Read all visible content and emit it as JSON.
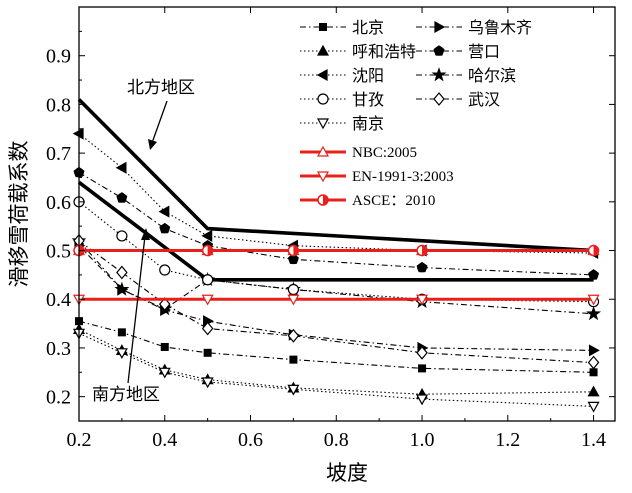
{
  "chart_data": {
    "type": "line",
    "title": "",
    "xlabel": "坡度",
    "ylabel": "滑移雪荷载系数",
    "xlim": [
      0.2,
      1.45
    ],
    "ylim": [
      0.15,
      1.0
    ],
    "xticks": [
      "0.2",
      "0.4",
      "0.6",
      "0.8",
      "1.0",
      "1.2",
      "1.4"
    ],
    "yticks": [
      "0.2",
      "0.3",
      "0.4",
      "0.5",
      "0.6",
      "0.7",
      "0.8",
      "0.9"
    ],
    "grid": false,
    "legend_position": "top-right",
    "series": [
      {
        "name": "北京",
        "marker": "square",
        "style": "dashdot",
        "color": "#000000",
        "x": [
          0.2,
          0.3,
          0.4,
          0.5,
          0.7,
          1.0,
          1.4
        ],
        "y": [
          0.355,
          0.332,
          0.302,
          0.29,
          0.276,
          0.258,
          0.25
        ]
      },
      {
        "name": "乌鲁木齐",
        "marker": "triangle-right",
        "style": "dashdot",
        "color": "#000000",
        "x": [
          0.2,
          0.3,
          0.4,
          0.5,
          0.7,
          1.0,
          1.4
        ],
        "y": [
          0.51,
          0.42,
          0.378,
          0.355,
          0.327,
          0.3,
          0.295
        ]
      },
      {
        "name": "呼和浩特",
        "marker": "triangle-up",
        "style": "dotted",
        "color": "#000000",
        "x": [
          0.2,
          0.3,
          0.4,
          0.5,
          0.7,
          1.0,
          1.4
        ],
        "y": [
          0.338,
          0.295,
          0.255,
          0.235,
          0.218,
          0.205,
          0.21
        ]
      },
      {
        "name": "营口",
        "marker": "pentagon",
        "style": "dashdot",
        "color": "#000000",
        "x": [
          0.2,
          0.3,
          0.4,
          0.5,
          0.7,
          1.0,
          1.4
        ],
        "y": [
          0.66,
          0.608,
          0.545,
          0.51,
          0.482,
          0.465,
          0.45
        ]
      },
      {
        "name": "沈阳",
        "marker": "triangle-left",
        "style": "dotted",
        "color": "#000000",
        "x": [
          0.2,
          0.3,
          0.4,
          0.5,
          0.7,
          1.0,
          1.4
        ],
        "y": [
          0.74,
          0.67,
          0.58,
          0.53,
          0.51,
          0.5,
          0.495
        ]
      },
      {
        "name": "哈尔滨",
        "marker": "star",
        "style": "dashdot",
        "color": "#000000",
        "x": [
          0.2,
          0.3,
          0.4,
          0.5,
          0.7,
          1.0,
          1.4
        ],
        "y": [
          0.52,
          0.42,
          0.38,
          0.44,
          0.42,
          0.395,
          0.37
        ]
      },
      {
        "name": "甘孜",
        "marker": "circle-open",
        "style": "dotted",
        "color": "#000000",
        "x": [
          0.2,
          0.3,
          0.4,
          0.5,
          0.7,
          1.0,
          1.4
        ],
        "y": [
          0.6,
          0.53,
          0.46,
          0.44,
          0.42,
          0.4,
          0.395
        ]
      },
      {
        "name": "武汉",
        "marker": "diamond-open",
        "style": "dashdot",
        "color": "#000000",
        "x": [
          0.2,
          0.3,
          0.4,
          0.5,
          0.7,
          1.0,
          1.4
        ],
        "y": [
          0.52,
          0.455,
          0.39,
          0.34,
          0.325,
          0.29,
          0.27
        ]
      },
      {
        "name": "南京",
        "marker": "triangle-down-open",
        "style": "dotted",
        "color": "#000000",
        "x": [
          0.2,
          0.3,
          0.4,
          0.5,
          0.7,
          1.0,
          1.4
        ],
        "y": [
          0.33,
          0.29,
          0.25,
          0.23,
          0.215,
          0.195,
          0.18
        ]
      },
      {
        "name": "NBC:2005",
        "marker": "triangle-up-open",
        "style": "solid-thick",
        "color": "#e8201c",
        "x": [
          0.2,
          0.5,
          0.7,
          1.0,
          1.4
        ],
        "y": [
          0.5,
          0.5,
          0.5,
          0.5,
          0.5
        ]
      },
      {
        "name": "EN-1991-3:2003",
        "marker": "triangle-down-open",
        "style": "solid-thick",
        "color": "#e8201c",
        "x": [
          0.2,
          0.5,
          0.7,
          1.0,
          1.4
        ],
        "y": [
          0.4,
          0.4,
          0.4,
          0.4,
          0.4
        ]
      },
      {
        "name": "ASCE：2010",
        "marker": "circle-half",
        "style": "solid-thick",
        "color": "#e8201c",
        "x": [
          0.2,
          0.5,
          0.7,
          1.0,
          1.4
        ],
        "y": [
          0.5,
          0.5,
          0.5,
          0.5,
          0.5
        ]
      }
    ],
    "envelopes": [
      {
        "name": "北方地区上限",
        "x": [
          0.2,
          0.5,
          1.4
        ],
        "y": [
          0.81,
          0.545,
          0.5
        ]
      },
      {
        "name": "南方地区上限",
        "x": [
          0.2,
          0.5,
          1.4
        ],
        "y": [
          0.64,
          0.44,
          0.44
        ]
      }
    ],
    "annotations": [
      {
        "text": "北方地区",
        "points_to": "北方地区上限"
      },
      {
        "text": "南方地区",
        "points_to": "南方地区上限"
      }
    ]
  }
}
